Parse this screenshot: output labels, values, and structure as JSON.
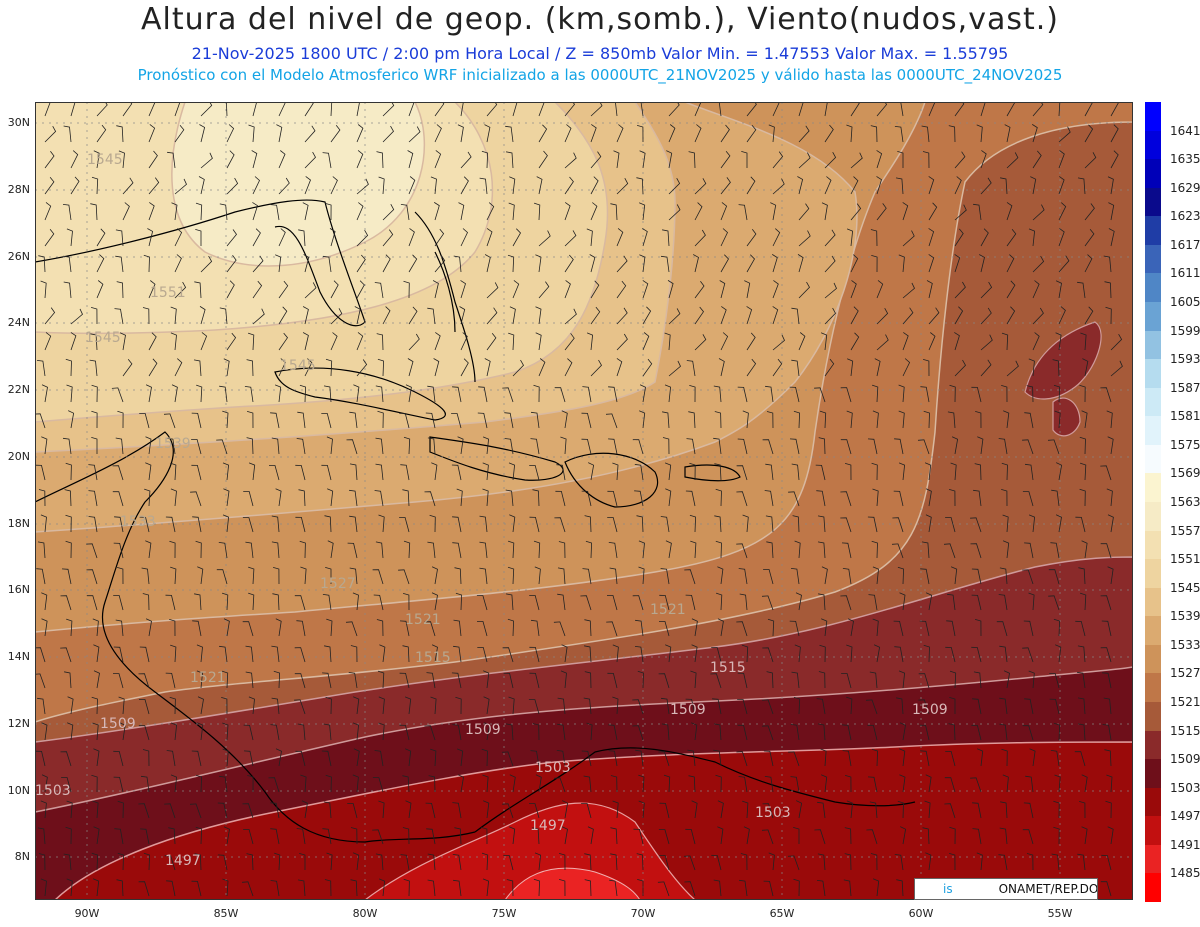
{
  "header": {
    "title": "Altura del nivel de geop. (km,somb.), Viento(nudos,vast.)",
    "subtitle": "21-Nov-2025  1800 UTC / 2:00 pm Hora Local / Z = 850mb     Valor Min. = 1.47553  Valor Max. = 1.55795",
    "model_info": "Pronóstico con el Modelo Atmosferico WRF inicializado a las 0000UTC_21NOV2025 y válido hasta las  0000UTC_24NOV2025"
  },
  "map": {
    "lon_range": [
      -92,
      -52
    ],
    "lat_range": [
      6.7,
      30.6
    ],
    "lat_ticks": [
      "30N",
      "28N",
      "26N",
      "24N",
      "22N",
      "20N",
      "18N",
      "16N",
      "14N",
      "12N",
      "10N",
      "8N"
    ],
    "lon_ticks": [
      "90W",
      "85W",
      "80W",
      "75W",
      "70W",
      "65W",
      "60W",
      "55W"
    ],
    "contour_labels": [
      "1545",
      "1551",
      "1545",
      "1545",
      "1539",
      "1533",
      "1527",
      "1521",
      "1521",
      "1521",
      "1515",
      "1515",
      "1509",
      "1509",
      "1509",
      "1509",
      "1503",
      "1503",
      "1503",
      "1497",
      "1497"
    ],
    "credit_prefix": "is",
    "credit_suffix": "ONAMET/REP.DOM."
  },
  "colorbar": {
    "labels": [
      "1641",
      "1635",
      "1629",
      "1623",
      "1617",
      "1611",
      "1605",
      "1599",
      "1593",
      "1587",
      "1581",
      "1575",
      "1569",
      "1563",
      "1557",
      "1551",
      "1545",
      "1539",
      "1533",
      "1527",
      "1521",
      "1515",
      "1509",
      "1503",
      "1497",
      "1491",
      "1485"
    ],
    "colors": [
      "#0000ff",
      "#0000dd",
      "#0000b8",
      "#0a0a8c",
      "#1f3da6",
      "#3a64b8",
      "#4f86c6",
      "#6aa3d4",
      "#92c2e2",
      "#b5dcef",
      "#cdeaf6",
      "#e1f3fb",
      "#f6fbfe",
      "#fbf4d0",
      "#f6ebc6",
      "#f3e0b2",
      "#eed4a0",
      "#e7c28a",
      "#dbaa70",
      "#ce935a",
      "#bf7748",
      "#a65a39",
      "#8a2a2a",
      "#6e0f1a",
      "#9a0a0a",
      "#c21010",
      "#ea2323",
      "#ff0000"
    ]
  }
}
